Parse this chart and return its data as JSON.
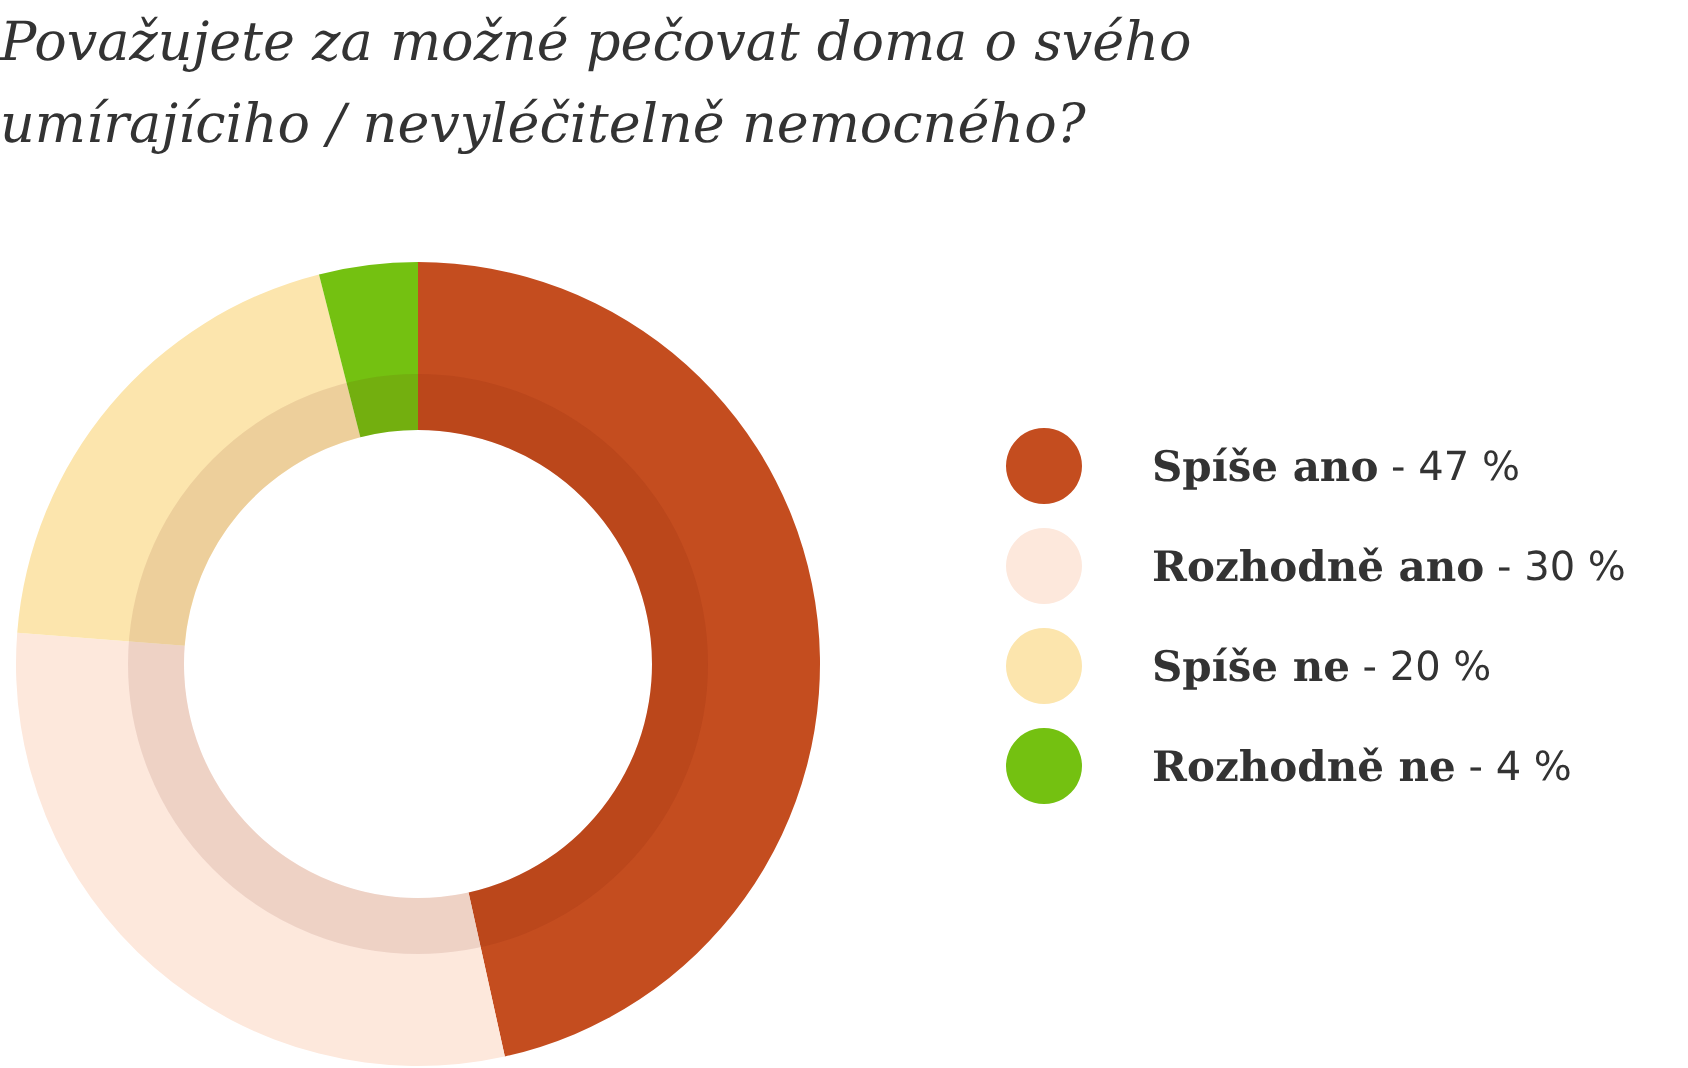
{
  "chart_data": {
    "type": "donut",
    "title": "Považujete za možné pečovat doma o svého umírajíciho / nevyléčitelně nemocného?",
    "categories": [
      "Spíše ano",
      "Rozhodně ano",
      "Spíše ne",
      "Rozhodně ne"
    ],
    "values": [
      47,
      30,
      20,
      4
    ],
    "colors": [
      "#c44d1f",
      "#fde8dc",
      "#fce5ad",
      "#74c111"
    ],
    "value_labels": [
      "‐ 47 %",
      "‐ 30 %",
      "‐ 20 %",
      "‐ 4 %"
    ],
    "legend": "right"
  }
}
